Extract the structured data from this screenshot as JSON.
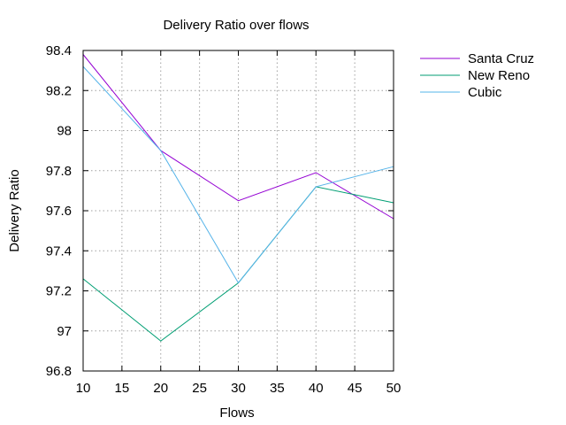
{
  "chart_data": {
    "type": "line",
    "title": "Delivery Ratio over flows",
    "xlabel": "Flows",
    "ylabel": "Delivery Ratio",
    "xlim": [
      10,
      50
    ],
    "ylim": [
      96.8,
      98.4
    ],
    "xticks": [
      10,
      15,
      20,
      25,
      30,
      35,
      40,
      45,
      50
    ],
    "yticks": [
      96.8,
      97,
      97.2,
      97.4,
      97.6,
      97.8,
      98,
      98.2,
      98.4
    ],
    "ytick_labels": [
      "96.8",
      "97",
      "97.2",
      "97.4",
      "97.6",
      "97.8",
      "98",
      "98.2",
      "98.4"
    ],
    "grid": true,
    "legend_position": "outside-top-right",
    "x": [
      10,
      20,
      30,
      40,
      50
    ],
    "series": [
      {
        "name": "Santa Cruz",
        "color": "#9400d3",
        "values": [
          98.38,
          97.9,
          97.65,
          97.79,
          97.56
        ]
      },
      {
        "name": "New Reno",
        "color": "#009e73",
        "values": [
          97.26,
          96.95,
          97.24,
          97.72,
          97.64
        ]
      },
      {
        "name": "Cubic",
        "color": "#56b4e9",
        "values": [
          98.32,
          97.9,
          97.24,
          97.72,
          97.82
        ]
      }
    ]
  }
}
